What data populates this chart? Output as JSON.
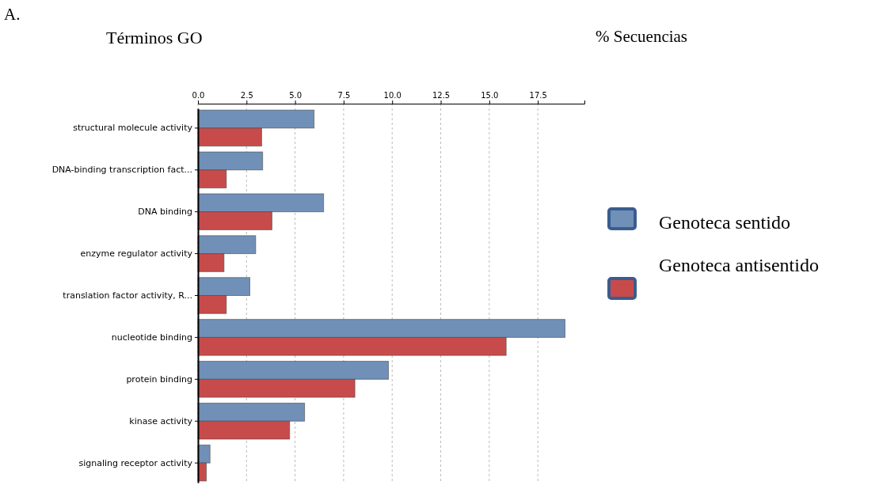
{
  "chart_data": {
    "type": "bar",
    "orientation": "horizontal",
    "ylabel": "Términos GO",
    "xlabel": "% Secuencias",
    "annotations": [
      "A."
    ],
    "categories": [
      "structural molecule activity",
      "DNA-binding transcription fact...",
      "DNA binding",
      "enzyme regulator activity",
      "translation factor activity, R...",
      "nucleotide binding",
      "protein binding",
      "kinase activity",
      "signaling receptor activity"
    ],
    "series": [
      {
        "name": "Genoteca sentido",
        "color": "#7090b8",
        "values": [
          5.98,
          3.33,
          6.47,
          2.97,
          2.67,
          18.9,
          9.81,
          5.49,
          0.62
        ]
      },
      {
        "name": "Genoteca antisentido",
        "color": "#c84b4b",
        "values": [
          3.28,
          1.46,
          3.81,
          1.34,
          1.46,
          15.87,
          8.08,
          4.72,
          0.43
        ]
      }
    ],
    "xlim": [
      0,
      19.9
    ],
    "xticks": [
      {
        "value": 0,
        "label": "0.0"
      },
      {
        "value": 2.5,
        "label": "2.5"
      },
      {
        "value": 5,
        "label": "5.0"
      },
      {
        "value": 7.5,
        "label": "7.5"
      },
      {
        "value": 10,
        "label": "10.0"
      },
      {
        "value": 12.5,
        "label": "12.5"
      },
      {
        "value": 15,
        "label": "15.0"
      },
      {
        "value": 17.5,
        "label": "17.5"
      }
    ],
    "grid": "x",
    "legend": "right"
  }
}
